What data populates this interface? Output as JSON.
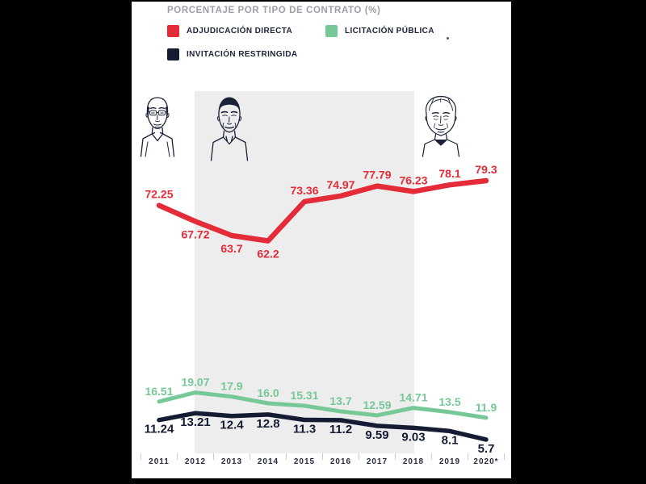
{
  "title": "PORCENTAJE POR TIPO DE CONTRATO (%)",
  "colors": {
    "background": "#000000",
    "panel": "#ffffff",
    "shaded_region": "#ededed",
    "red": "#e42b38",
    "green": "#76c897",
    "navy": "#151b33",
    "legend_text": "#1c2237",
    "axis_text": "#262c3d",
    "tick": "#c8cbcf",
    "title_gray": "#9ba0a6",
    "portrait_ink": "#1b2138"
  },
  "legend": [
    {
      "label": "ADJUDICACIÓN DIRECTA",
      "color": "#e42b38"
    },
    {
      "label": "LICITACIÓN PÚBLICA",
      "color": "#76c897"
    },
    {
      "label": "INVITACIÓN RESTRINGIDA",
      "color": "#151b33"
    }
  ],
  "chart_data": {
    "type": "line",
    "title": "PORCENTAJE POR TIPO DE CONTRATO (%)",
    "categories": [
      "2011",
      "2012",
      "2013",
      "2014",
      "2015",
      "2016",
      "2017",
      "2018",
      "2019",
      "2020*"
    ],
    "series": [
      {
        "name": "ADJUDICACIÓN DIRECTA",
        "color": "#e42b38",
        "values": [
          72.25,
          67.72,
          63.7,
          62.2,
          73.36,
          74.97,
          77.79,
          76.23,
          78.1,
          79.3
        ],
        "labels": [
          "72.25",
          "67.72",
          "63.7",
          "62.2",
          "73.36",
          "74.97",
          "77.79",
          "76.23",
          "78.1",
          "79.3"
        ],
        "label_side": [
          "above",
          "below",
          "below",
          "below",
          "above",
          "above",
          "above",
          "above",
          "above",
          "above"
        ]
      },
      {
        "name": "LICITACIÓN PÚBLICA",
        "color": "#76c897",
        "values": [
          16.51,
          19.07,
          17.9,
          16.0,
          15.31,
          13.7,
          12.59,
          14.71,
          13.5,
          11.9
        ],
        "labels": [
          "16.51",
          "19.07",
          "17.9",
          "16.0",
          "15.31",
          "13.7",
          "12.59",
          "14.71",
          "13.5",
          "11.9"
        ],
        "label_side": [
          "above",
          "above",
          "above",
          "above",
          "above",
          "above",
          "above",
          "above",
          "above",
          "above"
        ]
      },
      {
        "name": "INVITACIÓN RESTRINGIDA",
        "color": "#151b33",
        "values": [
          11.24,
          13.21,
          12.4,
          12.8,
          11.3,
          11.2,
          9.59,
          9.03,
          8.1,
          5.7
        ],
        "labels": [
          "11.24",
          "13.21",
          "12.4",
          "12.8",
          "11.3",
          "11.2",
          "9.59",
          "9.03",
          "8.1",
          "5.7"
        ],
        "label_side": [
          "below",
          "below",
          "below",
          "below",
          "below",
          "below",
          "below",
          "below",
          "below",
          "below"
        ]
      }
    ],
    "highlight_region": {
      "from_category": "2012",
      "to_category": "2018",
      "color": "#ededed"
    },
    "xlabel": "",
    "ylabel": "",
    "ylim": [
      0,
      100
    ],
    "grid": false,
    "legend_position": "top-left",
    "annotations": [
      "three presidential portraits above chart: 2011 term, 2012-2018 term (shaded), 2019+ term"
    ]
  }
}
